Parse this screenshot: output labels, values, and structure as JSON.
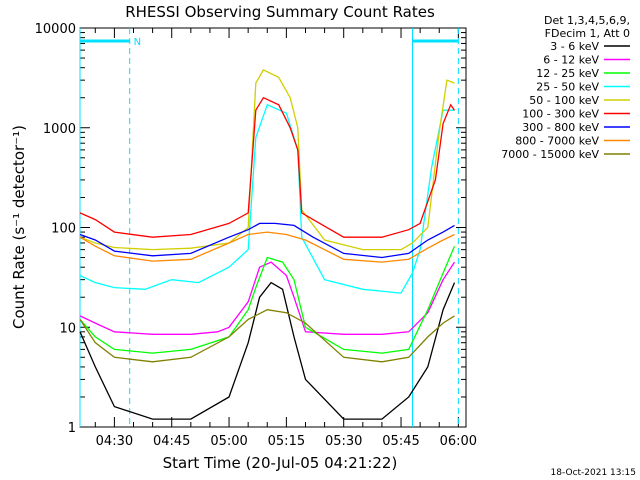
{
  "chart_data": {
    "type": "line",
    "title": "RHESSI Observing Summary Count Rates",
    "xlabel": "Start Time (20-Jul-05 04:21:22)",
    "ylabel": "Count Rate (s⁻¹ detector⁻¹)",
    "y_scale": "log",
    "ylim": [
      1,
      10000
    ],
    "y_ticks": [
      1,
      10,
      100,
      1000,
      10000
    ],
    "y_tick_labels": [
      "1",
      "10",
      "100",
      "1000",
      "10000"
    ],
    "xlim": [
      "04:21",
      "06:02"
    ],
    "x_ticks": [
      "04:30",
      "04:45",
      "05:00",
      "05:15",
      "05:30",
      "05:45",
      "06:00"
    ],
    "grid": false,
    "legend_position": "right",
    "legend_header": [
      "Det 1,3,4,5,6,9,",
      "FDecim 1, Att 0"
    ],
    "timestamp": "18-Oct-2021 13:15",
    "markers": {
      "night_label": "N",
      "boundaries": [
        "04:21",
        "04:34",
        "05:48",
        "06:00"
      ],
      "attenuator_bars": [
        [
          "04:21",
          "04:34"
        ],
        [
          "05:48",
          "06:00"
        ]
      ]
    },
    "series": [
      {
        "name": "3 - 6 keV",
        "color": "#000000",
        "points": [
          [
            "04:21",
            9
          ],
          [
            "04:25",
            4
          ],
          [
            "04:30",
            1.6
          ],
          [
            "04:40",
            1.2
          ],
          [
            "04:50",
            1.2
          ],
          [
            "05:00",
            2
          ],
          [
            "05:05",
            7
          ],
          [
            "05:08",
            20
          ],
          [
            "05:11",
            28
          ],
          [
            "05:14",
            24
          ],
          [
            "05:17",
            8
          ],
          [
            "05:20",
            3
          ],
          [
            "05:30",
            1.2
          ],
          [
            "05:40",
            1.2
          ],
          [
            "05:47",
            2
          ],
          [
            "05:52",
            4
          ],
          [
            "05:56",
            15
          ],
          [
            "05:59",
            28
          ]
        ]
      },
      {
        "name": "6 - 12 keV",
        "color": "#ff00ff",
        "points": [
          [
            "04:21",
            13
          ],
          [
            "04:25",
            11
          ],
          [
            "04:30",
            9
          ],
          [
            "04:40",
            8.5
          ],
          [
            "04:50",
            8.5
          ],
          [
            "04:57",
            9
          ],
          [
            "05:00",
            10
          ],
          [
            "05:05",
            18
          ],
          [
            "05:08",
            40
          ],
          [
            "05:11",
            45
          ],
          [
            "05:15",
            33
          ],
          [
            "05:17",
            20
          ],
          [
            "05:20",
            9
          ],
          [
            "05:30",
            8.5
          ],
          [
            "05:40",
            8.5
          ],
          [
            "05:47",
            9
          ],
          [
            "05:52",
            14
          ],
          [
            "05:56",
            30
          ],
          [
            "05:59",
            45
          ]
        ]
      },
      {
        "name": "12 - 25 keV",
        "color": "#00ff00",
        "points": [
          [
            "04:21",
            12
          ],
          [
            "04:25",
            8
          ],
          [
            "04:30",
            6
          ],
          [
            "04:40",
            5.5
          ],
          [
            "04:50",
            6
          ],
          [
            "05:00",
            8
          ],
          [
            "05:05",
            15
          ],
          [
            "05:07",
            25
          ],
          [
            "05:10",
            50
          ],
          [
            "05:14",
            45
          ],
          [
            "05:17",
            30
          ],
          [
            "05:20",
            10
          ],
          [
            "05:30",
            6
          ],
          [
            "05:40",
            5.5
          ],
          [
            "05:47",
            6
          ],
          [
            "05:52",
            15
          ],
          [
            "05:56",
            35
          ],
          [
            "05:59",
            65
          ]
        ]
      },
      {
        "name": "25 - 50 keV",
        "color": "#00ffff",
        "points": [
          [
            "04:21",
            33
          ],
          [
            "04:25",
            28
          ],
          [
            "04:30",
            25
          ],
          [
            "04:38",
            24
          ],
          [
            "04:45",
            30
          ],
          [
            "04:52",
            28
          ],
          [
            "05:00",
            40
          ],
          [
            "05:05",
            60
          ],
          [
            "05:07",
            800
          ],
          [
            "05:10",
            1700
          ],
          [
            "05:15",
            1400
          ],
          [
            "05:18",
            600
          ],
          [
            "05:19",
            80
          ],
          [
            "05:25",
            30
          ],
          [
            "05:35",
            24
          ],
          [
            "05:45",
            22
          ],
          [
            "05:48",
            35
          ],
          [
            "05:50",
            60
          ],
          [
            "05:53",
            400
          ],
          [
            "05:56",
            1500
          ],
          [
            "05:59",
            1500
          ]
        ]
      },
      {
        "name": "50 - 100 keV",
        "color": "#d0d000",
        "points": [
          [
            "04:21",
            80
          ],
          [
            "04:25",
            70
          ],
          [
            "04:30",
            63
          ],
          [
            "04:40",
            60
          ],
          [
            "04:50",
            62
          ],
          [
            "05:00",
            70
          ],
          [
            "05:05",
            100
          ],
          [
            "05:07",
            2800
          ],
          [
            "05:09",
            3800
          ],
          [
            "05:13",
            3200
          ],
          [
            "05:16",
            2000
          ],
          [
            "05:18",
            1000
          ],
          [
            "05:19",
            150
          ],
          [
            "05:25",
            75
          ],
          [
            "05:35",
            60
          ],
          [
            "05:45",
            60
          ],
          [
            "05:48",
            70
          ],
          [
            "05:52",
            100
          ],
          [
            "05:55",
            900
          ],
          [
            "05:57",
            3000
          ],
          [
            "05:59",
            2800
          ]
        ]
      },
      {
        "name": "100 - 300 keV",
        "color": "#ff0000",
        "points": [
          [
            "04:21",
            140
          ],
          [
            "04:25",
            120
          ],
          [
            "04:30",
            90
          ],
          [
            "04:40",
            80
          ],
          [
            "04:50",
            85
          ],
          [
            "05:00",
            110
          ],
          [
            "05:05",
            140
          ],
          [
            "05:07",
            1500
          ],
          [
            "05:09",
            2000
          ],
          [
            "05:13",
            1700
          ],
          [
            "05:16",
            1000
          ],
          [
            "05:18",
            600
          ],
          [
            "05:19",
            140
          ],
          [
            "05:22",
            120
          ],
          [
            "05:30",
            80
          ],
          [
            "05:40",
            80
          ],
          [
            "05:47",
            95
          ],
          [
            "05:50",
            110
          ],
          [
            "05:54",
            300
          ],
          [
            "05:56",
            1100
          ],
          [
            "05:58",
            1700
          ],
          [
            "05:59",
            1500
          ]
        ]
      },
      {
        "name": "300 - 800 keV",
        "color": "#0000ff",
        "points": [
          [
            "04:21",
            85
          ],
          [
            "04:25",
            75
          ],
          [
            "04:30",
            58
          ],
          [
            "04:40",
            52
          ],
          [
            "04:50",
            55
          ],
          [
            "05:00",
            80
          ],
          [
            "05:05",
            95
          ],
          [
            "05:08",
            110
          ],
          [
            "05:12",
            110
          ],
          [
            "05:17",
            105
          ],
          [
            "05:22",
            80
          ],
          [
            "05:30",
            55
          ],
          [
            "05:40",
            50
          ],
          [
            "05:47",
            55
          ],
          [
            "05:52",
            75
          ],
          [
            "05:56",
            90
          ],
          [
            "05:59",
            105
          ]
        ]
      },
      {
        "name": "800 - 7000 keV",
        "color": "#ff8800",
        "points": [
          [
            "04:21",
            80
          ],
          [
            "04:25",
            65
          ],
          [
            "04:30",
            52
          ],
          [
            "04:40",
            46
          ],
          [
            "04:50",
            48
          ],
          [
            "05:00",
            70
          ],
          [
            "05:05",
            85
          ],
          [
            "05:10",
            90
          ],
          [
            "05:15",
            85
          ],
          [
            "05:20",
            75
          ],
          [
            "05:30",
            48
          ],
          [
            "05:40",
            45
          ],
          [
            "05:47",
            48
          ],
          [
            "05:52",
            62
          ],
          [
            "05:56",
            75
          ],
          [
            "05:59",
            85
          ]
        ]
      },
      {
        "name": "7000 - 15000 keV",
        "color": "#808000",
        "points": [
          [
            "04:21",
            12
          ],
          [
            "04:25",
            7
          ],
          [
            "04:30",
            5
          ],
          [
            "04:40",
            4.5
          ],
          [
            "04:50",
            5
          ],
          [
            "05:00",
            8
          ],
          [
            "05:05",
            12
          ],
          [
            "05:10",
            15
          ],
          [
            "05:15",
            14
          ],
          [
            "05:20",
            11
          ],
          [
            "05:30",
            5
          ],
          [
            "05:40",
            4.5
          ],
          [
            "05:47",
            5
          ],
          [
            "05:52",
            8
          ],
          [
            "05:56",
            11
          ],
          [
            "05:59",
            13
          ]
        ]
      }
    ]
  }
}
